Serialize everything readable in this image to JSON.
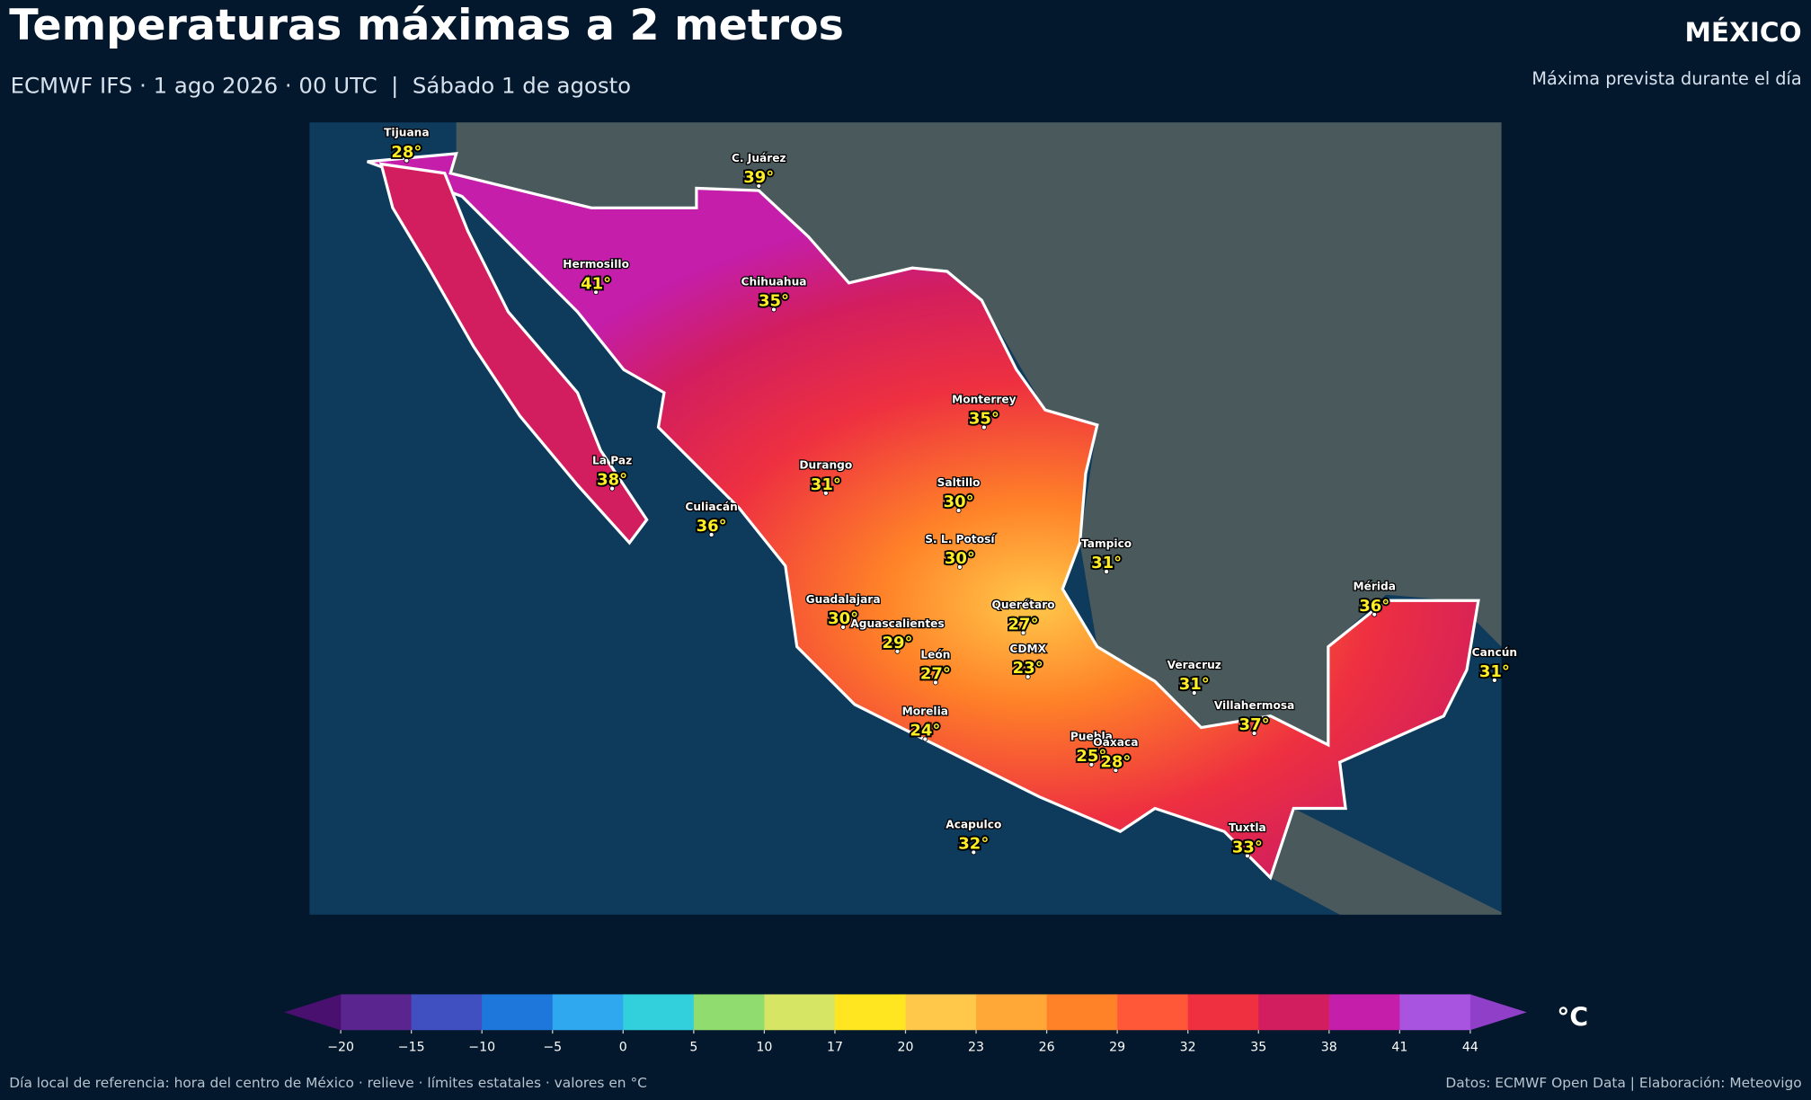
{
  "header": {
    "title": "Temperaturas máximas a 2 metros",
    "subtitle": "ECMWF IFS · 1 ago 2026 · 00 UTC  |  Sábado 1 de agosto",
    "region": "MÉXICO",
    "note": "Máxima prevista durante el día"
  },
  "cities": [
    {
      "name": "Tijuana",
      "temp": {
        "value": 28,
        "label": "28°"
      }
    },
    {
      "name": "C. Juárez",
      "temp": {
        "value": 39,
        "label": "39°"
      }
    },
    {
      "name": "Hermosillo",
      "temp": {
        "value": 41,
        "label": "41°"
      }
    },
    {
      "name": "Chihuahua",
      "temp": {
        "value": 35,
        "label": "35°"
      }
    },
    {
      "name": "Monterrey",
      "temp": {
        "value": 35,
        "label": "35°"
      }
    },
    {
      "name": "La Paz",
      "temp": {
        "value": 38,
        "label": "38°"
      }
    },
    {
      "name": "Durango",
      "temp": {
        "value": 31,
        "label": "31°"
      }
    },
    {
      "name": "Saltillo",
      "temp": {
        "value": 30,
        "label": "30°"
      }
    },
    {
      "name": "Culiacán",
      "temp": {
        "value": 36,
        "label": "36°"
      }
    },
    {
      "name": "S. L. Potosí",
      "temp": {
        "value": 30,
        "label": "30°"
      }
    },
    {
      "name": "Tampico",
      "temp": {
        "value": 31,
        "label": "31°"
      }
    },
    {
      "name": "Mérida",
      "temp": {
        "value": 36,
        "label": "36°"
      }
    },
    {
      "name": "Guadalajara",
      "temp": {
        "value": 30,
        "label": "30°"
      }
    },
    {
      "name": "Querétaro",
      "temp": {
        "value": 27,
        "label": "27°"
      }
    },
    {
      "name": "Aguascalientes",
      "temp": {
        "value": 29,
        "label": "29°"
      }
    },
    {
      "name": "CDMX",
      "temp": {
        "value": 23,
        "label": "23°"
      }
    },
    {
      "name": "León",
      "temp": {
        "value": 27,
        "label": "27°"
      }
    },
    {
      "name": "Cancún",
      "temp": {
        "value": 31,
        "label": "31°"
      }
    },
    {
      "name": "Veracruz",
      "temp": {
        "value": 31,
        "label": "31°"
      }
    },
    {
      "name": "Villahermosa",
      "temp": {
        "value": 37,
        "label": "37°"
      }
    },
    {
      "name": "Morelia",
      "temp": {
        "value": 24,
        "label": "24°"
      }
    },
    {
      "name": "Puebla",
      "temp": {
        "value": 25,
        "label": "25°"
      }
    },
    {
      "name": "Oaxaca",
      "temp": {
        "value": 28,
        "label": "28°"
      }
    },
    {
      "name": "Acapulco",
      "temp": {
        "value": 32,
        "label": "32°"
      }
    },
    {
      "name": "Tuxtla",
      "temp": {
        "value": 33,
        "label": "33°"
      }
    }
  ],
  "colorbar": {
    "unit": "°C",
    "ticks": [
      {
        "value": -20,
        "label": "−20"
      },
      {
        "value": -15,
        "label": "−15"
      },
      {
        "value": -10,
        "label": "−10"
      },
      {
        "value": -5,
        "label": "−5"
      },
      0,
      5,
      10,
      17,
      20,
      23,
      26,
      29,
      32,
      35,
      38,
      41,
      44
    ],
    "colors": [
      "#5b2590",
      "#4050c0",
      "#1e78dc",
      "#30a8f0",
      "#32d0dc",
      "#90dc6e",
      "#d6e664",
      "#ffe620",
      "#ffc84a",
      "#ffa838",
      "#ff8228",
      "#ff5838",
      "#ee3040",
      "#d21e5e",
      "#c41eaa",
      "#a854e0"
    ],
    "extend_colors": [
      "#4a1070",
      "#9040c8"
    ]
  },
  "footer": {
    "left": "Día local de referencia: hora del centro de México · relieve · límites estatales · valores en °C",
    "right": "Datos: ECMWF Open Data | Elaboración: Meteovigo"
  }
}
